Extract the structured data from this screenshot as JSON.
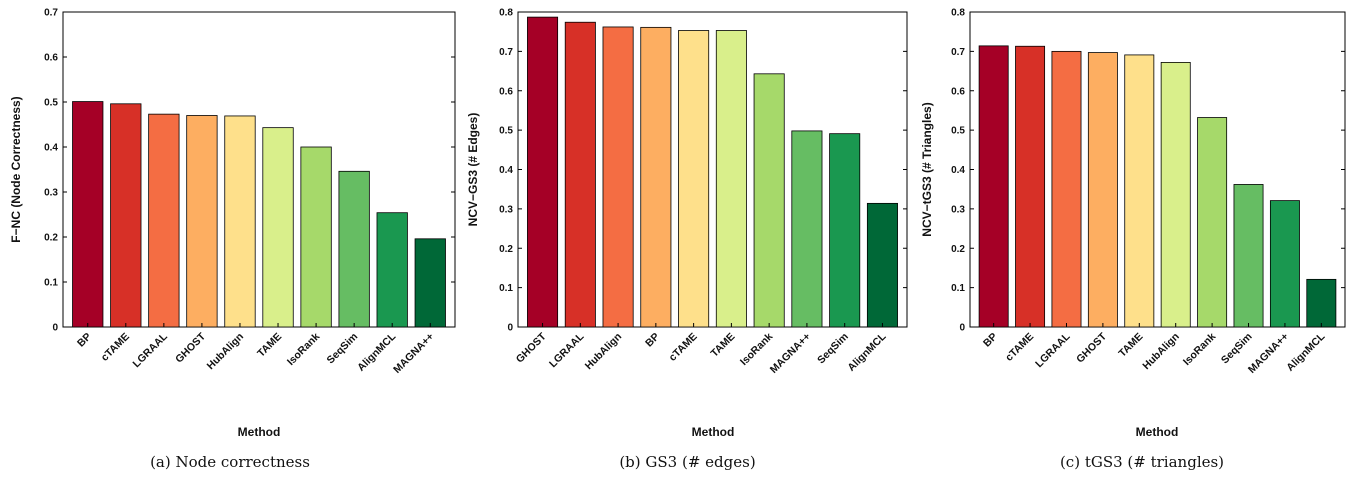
{
  "chart_data": [
    {
      "type": "bar",
      "caption": "(a) Node correctness",
      "xlabel": "Method",
      "ylabel": "F−NC (Node Correctness)",
      "ylim": [
        0,
        0.7
      ],
      "yticks": [
        "0",
        "0.1",
        "0.2",
        "0.3",
        "0.4",
        "0.5",
        "0.6",
        "0.7"
      ],
      "categories": [
        "BP",
        "cTAME",
        "LGRAAL",
        "GHOST",
        "HubAlign",
        "TAME",
        "IsoRank",
        "SeqSim",
        "AlignMCL",
        "MAGNA++"
      ],
      "values": [
        0.501,
        0.496,
        0.473,
        0.47,
        0.469,
        0.443,
        0.4,
        0.346,
        0.254,
        0.196
      ],
      "colors": [
        "#a50026",
        "#d73027",
        "#f46d43",
        "#fdae61",
        "#fee08b",
        "#d9ef8b",
        "#a6d96a",
        "#66bd63",
        "#1a9850",
        "#006837"
      ]
    },
    {
      "type": "bar",
      "caption": "(b) GS3 (# edges)",
      "xlabel": "Method",
      "ylabel": "NCV−GS3 (# Edges)",
      "ylim": [
        0,
        0.8
      ],
      "yticks": [
        "0",
        "0.1",
        "0.2",
        "0.3",
        "0.4",
        "0.5",
        "0.6",
        "0.7",
        "0.8"
      ],
      "categories": [
        "GHOST",
        "LGRAAL",
        "HubAlign",
        "BP",
        "cTAME",
        "TAME",
        "IsoRank",
        "MAGNA++",
        "SeqSim",
        "AlignMCL"
      ],
      "values": [
        0.787,
        0.774,
        0.762,
        0.761,
        0.753,
        0.753,
        0.643,
        0.498,
        0.491,
        0.314
      ],
      "colors": [
        "#a50026",
        "#d73027",
        "#f46d43",
        "#fdae61",
        "#fee08b",
        "#d9ef8b",
        "#a6d96a",
        "#66bd63",
        "#1a9850",
        "#006837"
      ]
    },
    {
      "type": "bar",
      "caption": "(c) tGS3 (# triangles)",
      "xlabel": "Method",
      "ylabel": "NCV−tGS3 (# Triangles)",
      "ylim": [
        0,
        0.8
      ],
      "yticks": [
        "0",
        "0.1",
        "0.2",
        "0.3",
        "0.4",
        "0.5",
        "0.6",
        "0.7",
        "0.8"
      ],
      "categories": [
        "BP",
        "cTAME",
        "LGRAAL",
        "GHOST",
        "TAME",
        "HubAlign",
        "IsoRank",
        "SeqSim",
        "MAGNA++",
        "AlignMCL"
      ],
      "values": [
        0.714,
        0.713,
        0.7,
        0.697,
        0.691,
        0.672,
        0.532,
        0.362,
        0.321,
        0.121
      ],
      "colors": [
        "#a50026",
        "#d73027",
        "#f46d43",
        "#fdae61",
        "#fee08b",
        "#d9ef8b",
        "#a6d96a",
        "#66bd63",
        "#1a9850",
        "#006837"
      ]
    }
  ]
}
